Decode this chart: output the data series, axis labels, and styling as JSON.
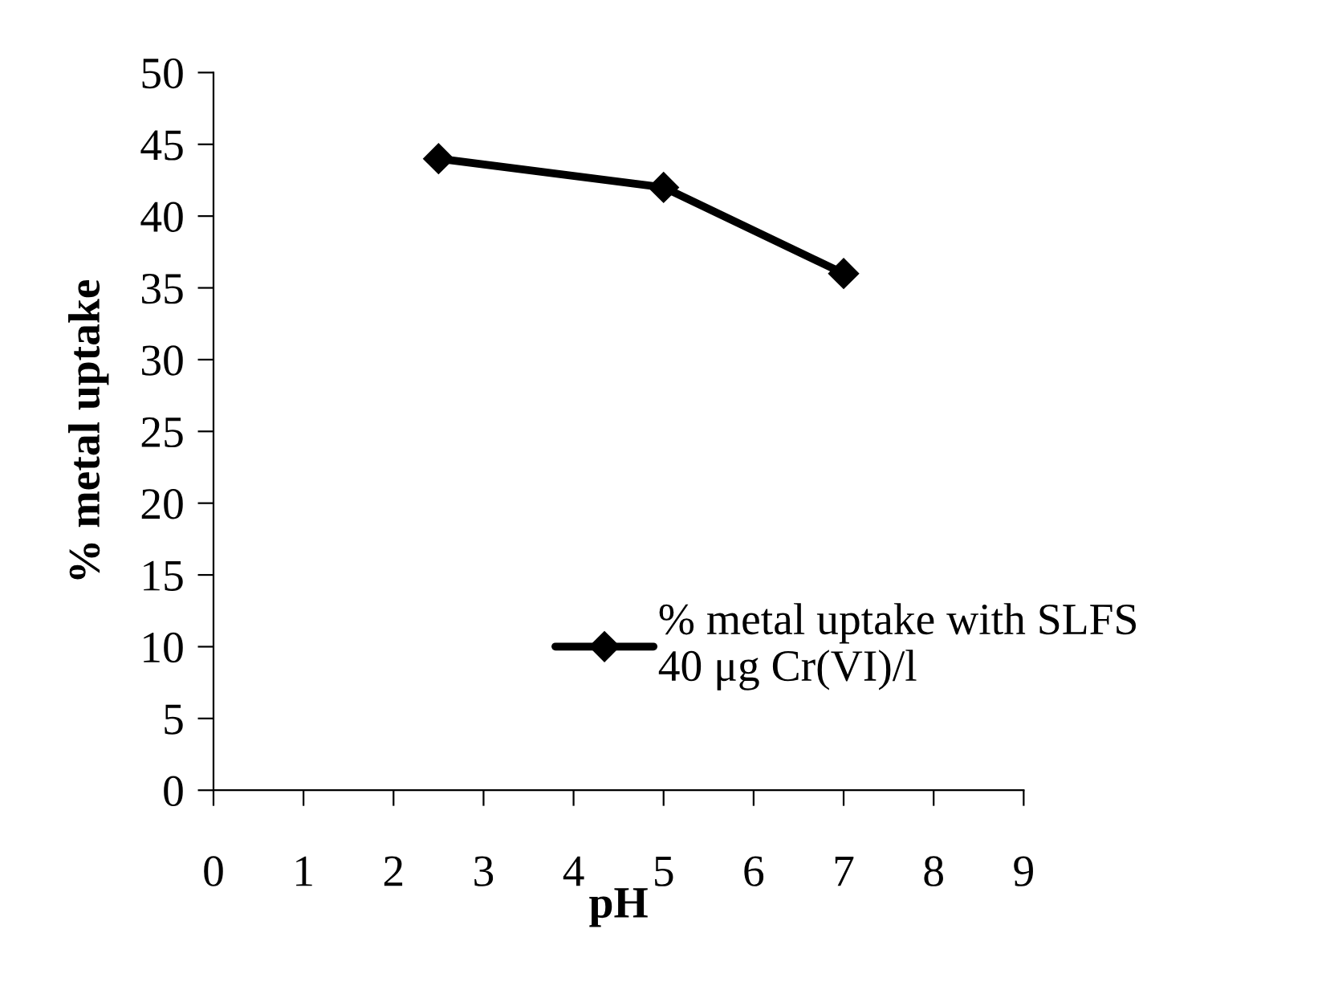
{
  "chart_data": {
    "type": "line",
    "xlabel": "pH",
    "ylabel": "% metal uptake",
    "x": [
      2.5,
      5,
      7
    ],
    "series": [
      {
        "name": "% metal uptake with SLFS\n40 μg Cr(VI)/l",
        "color": "#000000",
        "values": [
          44,
          42,
          36
        ]
      }
    ],
    "xlim": [
      0,
      9
    ],
    "xticks": [
      0,
      1,
      2,
      3,
      4,
      5,
      6,
      7,
      8,
      9
    ],
    "ylim": [
      0,
      50
    ],
    "yticks": [
      0,
      5,
      10,
      15,
      20,
      25,
      30,
      35,
      40,
      45,
      50
    ],
    "marker": "diamond",
    "line_style": "solid",
    "legend": "right",
    "grid": false
  }
}
